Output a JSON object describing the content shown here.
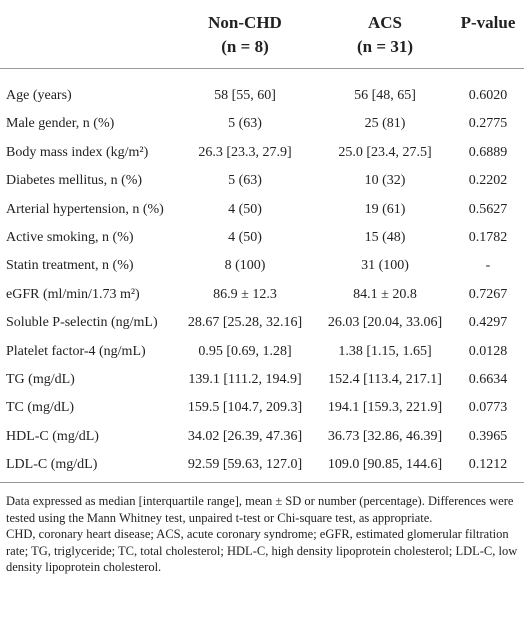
{
  "table": {
    "header": [
      [
        "Non-CHD",
        "(n = 8)"
      ],
      [
        "ACS",
        "(n = 31)"
      ],
      [
        "P-value"
      ]
    ],
    "rows": [
      [
        "Age (years)",
        "58 [55, 60]",
        "56 [48, 65]",
        "0.6020"
      ],
      [
        "Male gender, n (%)",
        "5 (63)",
        "25 (81)",
        "0.2775"
      ],
      [
        "Body mass index (kg/m²)",
        "26.3 [23.3, 27.9]",
        "25.0 [23.4, 27.5]",
        "0.6889"
      ],
      [
        "Diabetes mellitus, n (%)",
        "5 (63)",
        "10 (32)",
        "0.2202"
      ],
      [
        "Arterial hypertension, n (%)",
        "4 (50)",
        "19 (61)",
        "0.5627"
      ],
      [
        "Active smoking, n (%)",
        "4 (50)",
        "15 (48)",
        "0.1782"
      ],
      [
        "Statin treatment, n (%)",
        "8 (100)",
        "31 (100)",
        "-"
      ],
      [
        "eGFR (ml/min/1.73 m²)",
        "86.9 ± 12.3",
        "84.1 ± 20.8",
        "0.7267"
      ],
      [
        "Soluble P-selectin (ng/mL)",
        "28.67 [25.28, 32.16]",
        "26.03 [20.04, 33.06]",
        "0.4297"
      ],
      [
        "Platelet factor-4 (ng/mL)",
        "0.95 [0.69, 1.28]",
        "1.38 [1.15, 1.65]",
        "0.0128"
      ],
      [
        "TG (mg/dL)",
        "139.1 [111.2, 194.9]",
        "152.4 [113.4, 217.1]",
        "0.6634"
      ],
      [
        "TC (mg/dL)",
        "159.5 [104.7, 209.3]",
        "194.1 [159.3, 221.9]",
        "0.0773"
      ],
      [
        "HDL-C (mg/dL)",
        "34.02 [26.39, 47.36]",
        "36.73 [32.86, 46.39]",
        "0.3965"
      ],
      [
        "LDL-C (mg/dL)",
        "92.59 [59.63, 127.0]",
        "109.0 [90.85, 144.6]",
        "0.1212"
      ]
    ],
    "notes": [
      "Data expressed as median [interquartile range], mean ± SD or number (percentage). Differences were tested using the Mann Whitney test, unpaired t-test or Chi-square test, as appropriate.",
      "CHD, coronary heart disease; ACS, acute coronary syndrome; eGFR, estimated glomerular filtration rate; TG, triglyceride; TC, total cholesterol; HDL-C, high density lipoprotein cholesterol; LDL-C, low density lipoprotein cholesterol."
    ]
  }
}
